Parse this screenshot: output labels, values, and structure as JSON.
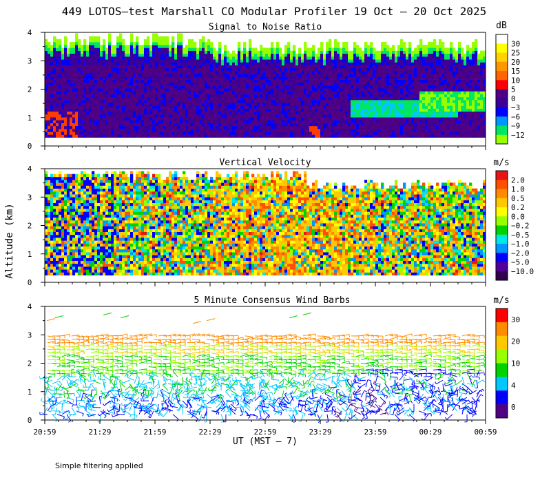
{
  "title": "449 LOTOS—test Marshall CO Modular Profiler 19 Oct — 20 Oct 2025",
  "ylabel": "Altitude (km)",
  "xlabel": "UT  (MST — 7)",
  "footnote": "Simple filtering applied",
  "chart_data": [
    {
      "type": "heatmap",
      "title": "Signal to Noise Ratio",
      "x_ticks": [
        "20:59",
        "21:29",
        "21:59",
        "22:29",
        "22:59",
        "23:29",
        "23:59",
        "00:29",
        "00:59"
      ],
      "y_ticks": [
        "0",
        "1",
        "2",
        "3",
        "4"
      ],
      "ylim": [
        0,
        4
      ],
      "colorbar": {
        "unit": "dB",
        "labels": [
          "30",
          "25",
          "20",
          "15",
          "10",
          "5",
          "0",
          "−3",
          "−6",
          "−9",
          "−12"
        ],
        "colors": [
          "#ffffff",
          "#ffff00",
          "#ffd200",
          "#ff9600",
          "#ff6400",
          "#ff0000",
          "#500082",
          "#3c0096",
          "#0000ff",
          "#0096ff",
          "#00e664",
          "#96ff00"
        ]
      }
    },
    {
      "type": "heatmap",
      "title": "Vertical Velocity",
      "x_ticks": [
        "20:59",
        "21:29",
        "21:59",
        "22:29",
        "22:59",
        "23:29",
        "23:59",
        "00:29",
        "00:59"
      ],
      "y_ticks": [
        "0",
        "1",
        "2",
        "3",
        "4"
      ],
      "ylim": [
        0,
        4
      ],
      "colorbar": {
        "unit": "m/s",
        "labels": [
          "2.0",
          "1.0",
          "0.5",
          "0.2",
          "0.0",
          "−0.2",
          "−0.5",
          "−1.0",
          "−2.0",
          "−5.0",
          "−10.0"
        ],
        "colors": [
          "#e61414",
          "#ff5000",
          "#ff8c00",
          "#ffc800",
          "#ffff00",
          "#96ff00",
          "#00d200",
          "#00e6e6",
          "#0096ff",
          "#0000ff",
          "#500096",
          "#320050"
        ]
      }
    },
    {
      "type": "scatter",
      "title": "5 Minute Consensus Wind Barbs",
      "x_ticks": [
        "20:59",
        "21:29",
        "21:59",
        "22:29",
        "22:59",
        "23:29",
        "23:59",
        "00:29",
        "00:59"
      ],
      "y_ticks": [
        "0",
        "1",
        "2",
        "3",
        "4"
      ],
      "ylim": [
        0,
        4
      ],
      "colorbar": {
        "unit": "m/s",
        "labels": [
          "30",
          "20",
          "10",
          "4",
          "0"
        ],
        "colors": [
          "#ff0000",
          "#ff8c00",
          "#ffc800",
          "#96ff00",
          "#00d200",
          "#00c8ff",
          "#0000ff",
          "#500082"
        ]
      }
    }
  ]
}
